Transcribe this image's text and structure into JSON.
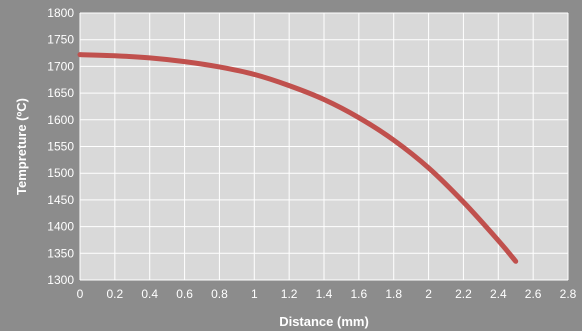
{
  "chart_data": {
    "type": "line",
    "title": "",
    "xlabel": "Distance (mm)",
    "ylabel": "Tempreture (ºC)",
    "xlim": [
      0,
      2.8
    ],
    "ylim": [
      1300,
      1800
    ],
    "x_ticks": [
      "0",
      "0.2",
      "0.4",
      "0.6",
      "0.8",
      "1",
      "1.2",
      "1.4",
      "1.6",
      "1.8",
      "2",
      "2.2",
      "2.4",
      "2.6",
      "2.8"
    ],
    "y_ticks": [
      "1300",
      "1350",
      "1400",
      "1450",
      "1500",
      "1550",
      "1600",
      "1650",
      "1700",
      "1750",
      "1800"
    ],
    "grid": true,
    "legend": "none",
    "series": [
      {
        "x": [
          0,
          0.2,
          0.4,
          0.6,
          0.8,
          1.0,
          1.2,
          1.4,
          1.6,
          1.8,
          2.0,
          2.2,
          2.4,
          2.5
        ],
        "y": [
          1722,
          1720,
          1716,
          1709,
          1699,
          1685,
          1664,
          1638,
          1604,
          1562,
          1510,
          1446,
          1374,
          1335
        ],
        "color": "#c0504d"
      }
    ],
    "colors": {
      "background": "#8c8c8c",
      "plot_area": "#d9d9d9",
      "grid": "#ffffff",
      "text": "#ffffff"
    }
  }
}
